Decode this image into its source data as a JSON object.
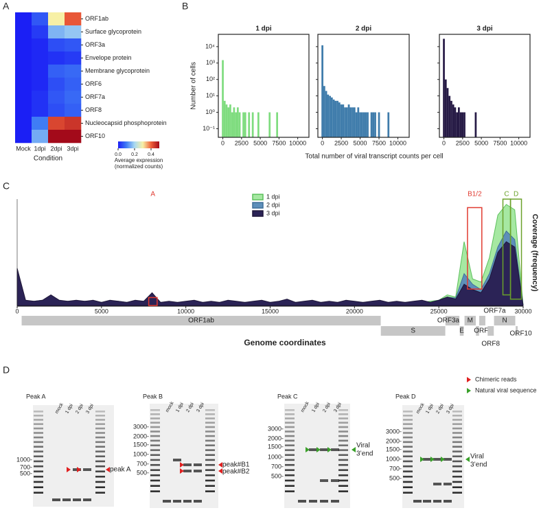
{
  "panel_labels": [
    "A",
    "B",
    "C",
    "D"
  ],
  "chart_data": [
    {
      "type": "heatmap",
      "rows": [
        "ORF1ab",
        "Surface glycoprotein",
        "ORF3a",
        "Envelope protein",
        "Membrane glycoprotein",
        "ORF6",
        "ORF7a",
        "ORF8",
        "Nucleocapsid phosphoprotein",
        "ORF10"
      ],
      "columns": [
        "Mock",
        "1dpi",
        "2dpi",
        "3dpi"
      ],
      "x_label": "Condition",
      "values": [
        [
          0,
          0.06,
          0.3,
          0.41
        ],
        [
          0,
          0.03,
          0.16,
          0.18
        ],
        [
          0,
          0.01,
          0.05,
          0.06
        ],
        [
          0,
          0.01,
          0.02,
          0.03
        ],
        [
          0,
          0.01,
          0.07,
          0.08
        ],
        [
          0,
          0.01,
          0.05,
          0.07
        ],
        [
          0,
          0.02,
          0.06,
          0.08
        ],
        [
          0,
          0.02,
          0.05,
          0.07
        ],
        [
          0,
          0.1,
          0.43,
          0.45
        ],
        [
          0,
          0.15,
          0.5,
          0.5
        ]
      ],
      "colormap": [
        "#1b1ff5",
        "#3f7cf5",
        "#a9d9f2",
        "#f7f0a6",
        "#f0603a",
        "#a30a1a"
      ],
      "colorbar": {
        "lim": [
          0,
          0.5
        ],
        "ticks": [
          {
            "value": 0,
            "label": "0.0"
          },
          0.2,
          0.4
        ],
        "label": [
          "Average expression",
          "(normalized counts)"
        ]
      }
    },
    {
      "type": "histogram",
      "title": "1 dpi",
      "color": "#7fdc7f",
      "log_y": true,
      "y_label": "Number of cells",
      "ylim": [
        0.03,
        56000
      ],
      "yticks": [
        {
          "value": 0.1,
          "label": "10⁻¹"
        },
        {
          "value": 1,
          "label": "10⁰"
        },
        {
          "value": 10,
          "label": "10¹"
        },
        {
          "value": 100,
          "label": "10²"
        },
        {
          "value": 1000,
          "label": "10³"
        },
        {
          "value": 10000,
          "label": "10⁴"
        }
      ],
      "xlim": [
        -600,
        11500
      ],
      "xticks": [
        0,
        2500,
        5000,
        7500,
        10000
      ],
      "bins": [
        -125,
        125,
        375,
        625,
        875,
        1125,
        1375,
        1625,
        1875,
        2125,
        2375,
        2625,
        2875,
        3125,
        3375,
        3625,
        3875,
        4125,
        4375,
        4625,
        4875,
        5125,
        5375,
        5625,
        5875,
        6125,
        6375,
        6625,
        6875,
        7125,
        7375
      ],
      "counts": [
        1500,
        5,
        3,
        2,
        3,
        1,
        2,
        1,
        2,
        1,
        0,
        1,
        1,
        0,
        1,
        0,
        1,
        0,
        0,
        1,
        0,
        0,
        0,
        0,
        0,
        1,
        0,
        0,
        0,
        1
      ]
    },
    {
      "type": "histogram",
      "title": "2 dpi",
      "color": "#3f7cab",
      "log_y": true,
      "x_label": "Total number of viral transcript counts per cell",
      "ylim": [
        0.03,
        56000
      ],
      "xlim": [
        -600,
        11500
      ],
      "xticks": [
        0,
        2500,
        5000,
        7500,
        10000
      ],
      "bins": [
        -125,
        125,
        375,
        625,
        875,
        1125,
        1375,
        1625,
        1875,
        2125,
        2375,
        2625,
        2875,
        3125,
        3375,
        3625,
        3875,
        4125,
        4375,
        4625,
        4875,
        5125,
        5375,
        5625,
        5875,
        6125,
        6375,
        6625,
        6875,
        7125,
        7375,
        7625,
        7875,
        8125,
        8375,
        8625,
        8875
      ],
      "counts": [
        12000,
        40,
        20,
        12,
        10,
        8,
        6,
        5,
        5,
        4,
        3,
        3,
        2,
        2,
        3,
        2,
        2,
        2,
        1,
        2,
        1,
        1,
        1,
        1,
        1,
        0,
        1,
        1,
        1,
        0,
        1,
        0,
        0,
        0,
        0,
        1
      ]
    },
    {
      "type": "histogram",
      "title": "3 dpi",
      "color": "#261a45",
      "log_y": true,
      "ylim": [
        0.03,
        56000
      ],
      "xlim": [
        -600,
        11500
      ],
      "xticks": [
        0,
        2500,
        5000,
        7500,
        10000
      ],
      "bins": [
        -125,
        125,
        375,
        625,
        875,
        1125,
        1375,
        1625,
        1875,
        2125,
        2375,
        2625,
        2875,
        3125,
        3375,
        3625,
        3875,
        4125,
        4375
      ],
      "counts": [
        30000,
        100,
        30,
        10,
        5,
        3,
        2,
        1,
        2,
        1,
        1,
        1,
        0,
        0,
        0,
        0,
        0,
        1
      ]
    },
    {
      "type": "area",
      "y_label": "Coverage (frequency)",
      "x_label": "Genome coordinates",
      "xlim": [
        0,
        30000
      ],
      "ylim": [
        0,
        1
      ],
      "xticks": [
        0,
        5000,
        10000,
        15000,
        20000,
        25000,
        30000
      ],
      "x": [
        0,
        500,
        1000,
        1500,
        2000,
        2500,
        3000,
        3500,
        4000,
        4500,
        5000,
        5500,
        6000,
        6500,
        7000,
        7500,
        8000,
        8500,
        9000,
        9500,
        10000,
        10500,
        11000,
        11500,
        12000,
        12500,
        13000,
        13500,
        14000,
        14500,
        15000,
        15500,
        16000,
        16500,
        17000,
        17500,
        18000,
        18500,
        19000,
        19500,
        20000,
        20500,
        21000,
        21500,
        22000,
        22500,
        23000,
        23500,
        24000,
        24500,
        25000,
        25500,
        26000,
        26500,
        27000,
        27500,
        28000,
        28500,
        29000,
        29500,
        30000
      ],
      "series": [
        {
          "name": "1 dpi",
          "color": "#5cc05c",
          "fill": "#a6e8a2",
          "values": [
            0.3,
            0.03,
            0.03,
            0.04,
            0.06,
            0.03,
            0.03,
            0.03,
            0.03,
            0.03,
            0.02,
            0.03,
            0.03,
            0.02,
            0.03,
            0.03,
            0.08,
            0.02,
            0.03,
            0.02,
            0.03,
            0.03,
            0.02,
            0.03,
            0.02,
            0.03,
            0.03,
            0.02,
            0.03,
            0.03,
            0.02,
            0.03,
            0.04,
            0.02,
            0.03,
            0.03,
            0.02,
            0.03,
            0.02,
            0.03,
            0.03,
            0.02,
            0.03,
            0.03,
            0.02,
            0.03,
            0.02,
            0.03,
            0.03,
            0.04,
            0.05,
            0.1,
            0.08,
            0.6,
            0.25,
            0.22,
            0.45,
            0.85,
            0.95,
            0.9,
            0
          ]
        },
        {
          "name": "2 dpi",
          "color": "#3f6f98",
          "fill": "#5d8fba",
          "values": [
            0.33,
            0.04,
            0.04,
            0.05,
            0.08,
            0.04,
            0.04,
            0.04,
            0.04,
            0.04,
            0.03,
            0.04,
            0.04,
            0.03,
            0.04,
            0.04,
            0.1,
            0.03,
            0.03,
            0.03,
            0.03,
            0.04,
            0.03,
            0.03,
            0.03,
            0.04,
            0.03,
            0.03,
            0.03,
            0.04,
            0.03,
            0.03,
            0.05,
            0.03,
            0.03,
            0.04,
            0.03,
            0.03,
            0.03,
            0.04,
            0.03,
            0.03,
            0.03,
            0.04,
            0.03,
            0.03,
            0.03,
            0.03,
            0.04,
            0.03,
            0.05,
            0.08,
            0.07,
            0.3,
            0.2,
            0.15,
            0.3,
            0.55,
            0.7,
            0.62,
            0
          ]
        },
        {
          "name": "3 dpi",
          "color": "#1e1638",
          "fill": "#2b2356",
          "values": [
            0.35,
            0.05,
            0.04,
            0.05,
            0.1,
            0.05,
            0.04,
            0.05,
            0.04,
            0.05,
            0.03,
            0.05,
            0.04,
            0.03,
            0.05,
            0.04,
            0.12,
            0.03,
            0.04,
            0.03,
            0.04,
            0.05,
            0.03,
            0.04,
            0.03,
            0.05,
            0.04,
            0.03,
            0.04,
            0.05,
            0.03,
            0.04,
            0.06,
            0.03,
            0.04,
            0.05,
            0.03,
            0.04,
            0.03,
            0.05,
            0.04,
            0.03,
            0.04,
            0.05,
            0.03,
            0.04,
            0.03,
            0.04,
            0.05,
            0.03,
            0.05,
            0.08,
            0.06,
            0.2,
            0.15,
            0.12,
            0.25,
            0.5,
            0.6,
            0.55,
            0
          ]
        }
      ],
      "annotations": [
        {
          "label": "A",
          "color": "#e03a30",
          "x": [
            7800,
            8300
          ],
          "y": [
            0,
            0.075
          ]
        },
        {
          "label": "B1/2",
          "color": "#e03a30",
          "x": [
            26700,
            27550
          ],
          "y": [
            0.155,
            0.92
          ]
        },
        {
          "label": "C",
          "color": "#6aa12a",
          "x": [
            28800,
            29250
          ],
          "y": [
            0.1,
            1
          ]
        },
        {
          "label": "D",
          "color": "#6aa12a",
          "x": [
            29250,
            29900
          ],
          "y": [
            0.06,
            1
          ]
        }
      ],
      "genes": [
        {
          "name": "ORF1ab",
          "start": 266,
          "end": 21555
        },
        {
          "name": "S",
          "start": 21563,
          "end": 25384
        },
        {
          "name": "ORF3a",
          "start": 25393,
          "end": 26220
        },
        {
          "name": "E",
          "start": 26245,
          "end": 26472
        },
        {
          "name": "M",
          "start": 26523,
          "end": 27191
        },
        {
          "name": "ORF6",
          "start": 27202,
          "end": 27387
        },
        {
          "name": "ORF7a",
          "start": 27394,
          "end": 27759
        },
        {
          "name": "ORF8",
          "start": 27894,
          "end": 28259
        },
        {
          "name": "N",
          "start": 28274,
          "end": 29533
        },
        {
          "name": "ORF10",
          "start": 29558,
          "end": 29674
        }
      ]
    }
  ],
  "gel_legend": [
    {
      "label": "Chimeric reads",
      "color": "#e02020"
    },
    {
      "label": "Natural viral sequence",
      "color": "#3aa02a"
    }
  ],
  "gels": [
    {
      "title": "Peak A",
      "lanes": [
        "mock",
        "1 dpi",
        "2 dpi",
        "3 dpi"
      ],
      "sizes": [
        "1000-",
        "700-",
        "500-"
      ],
      "labels": [
        "peak A"
      ],
      "arrow_color": "#e02020"
    },
    {
      "title": "Peak B",
      "lanes": [
        "mock",
        "1 dpi",
        "2 dpi",
        "3 dpi"
      ],
      "sizes": [
        "3000-",
        "2000-",
        "1500-",
        "1000-",
        "700-",
        "500-"
      ],
      "labels": [
        "peak#B1",
        "peak#B2"
      ],
      "arrow_color": "#e02020"
    },
    {
      "title": "Peak C",
      "lanes": [
        "mock",
        "1 dpi",
        "2 dpi",
        "3 dpi"
      ],
      "sizes": [
        "3000-",
        "2000-",
        "1500-",
        "1000-",
        "700-",
        "500-"
      ],
      "labels": [
        "Viral",
        "3’end"
      ],
      "arrow_color": "#3aa02a"
    },
    {
      "title": "Peak D",
      "lanes": [
        "mock",
        "1 dpi",
        "2 dpi",
        "3 dpi"
      ],
      "sizes": [
        "3000-",
        "2000-",
        "1500-",
        "1000-",
        "700-",
        "500-"
      ],
      "labels": [
        "Viral",
        "3’end"
      ],
      "arrow_color": "#3aa02a"
    }
  ]
}
